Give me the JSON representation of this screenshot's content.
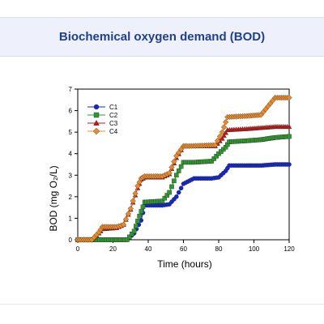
{
  "page": {
    "title": "Biochemical oxygen demand (BOD)"
  },
  "chart_data": {
    "type": "line",
    "title": "",
    "xlabel": "Time (hours)",
    "ylabel": "BOD (mg O₂/L)",
    "xlim": [
      0,
      120
    ],
    "ylim": [
      0,
      7
    ],
    "xticks": [
      0,
      20,
      40,
      60,
      80,
      100,
      120
    ],
    "yticks": [
      0,
      1,
      2,
      3,
      4,
      5,
      6,
      7
    ],
    "grid": false,
    "legend": "top-left",
    "series": [
      {
        "name": "C1",
        "color": "#1426c8",
        "marker": "circle",
        "x": [
          0,
          10,
          20,
          28,
          32,
          36,
          38,
          48,
          52,
          56,
          60,
          66,
          76,
          80,
          84,
          86,
          96,
          104,
          112,
          120
        ],
        "y": [
          0,
          0,
          0,
          0,
          0.3,
          0.9,
          1.6,
          1.6,
          1.65,
          2.0,
          2.6,
          2.85,
          2.85,
          2.9,
          3.2,
          3.45,
          3.45,
          3.45,
          3.5,
          3.5
        ]
      },
      {
        "name": "C2",
        "color": "#2e9a2e",
        "marker": "square",
        "x": [
          0,
          10,
          20,
          28,
          32,
          35,
          38,
          48,
          52,
          56,
          60,
          66,
          76,
          80,
          84,
          86,
          96,
          104,
          112,
          120
        ],
        "y": [
          0,
          0,
          0,
          0,
          0.4,
          1.1,
          1.75,
          1.8,
          2.2,
          3.0,
          3.6,
          3.6,
          3.65,
          4.0,
          4.3,
          4.55,
          4.6,
          4.65,
          4.75,
          4.8
        ]
      },
      {
        "name": "C3",
        "color": "#c81414",
        "marker": "triangle",
        "x": [
          0,
          8,
          12,
          14,
          22,
          26,
          30,
          34,
          36,
          38,
          48,
          52,
          56,
          60,
          62,
          78,
          82,
          85,
          96,
          104,
          112,
          120
        ],
        "y": [
          0,
          0,
          0.3,
          0.5,
          0.55,
          0.7,
          1.4,
          2.4,
          2.8,
          2.9,
          2.9,
          3.05,
          3.8,
          4.35,
          4.35,
          4.35,
          4.7,
          5.1,
          5.15,
          5.2,
          5.25,
          5.25
        ]
      },
      {
        "name": "C4",
        "color": "#e88a2c",
        "marker": "diamond",
        "x": [
          0,
          8,
          12,
          14,
          22,
          26,
          30,
          34,
          36,
          38,
          48,
          52,
          56,
          60,
          62,
          78,
          82,
          85,
          96,
          104,
          108,
          112,
          120
        ],
        "y": [
          0,
          0,
          0.35,
          0.6,
          0.6,
          0.7,
          1.45,
          2.5,
          2.85,
          2.95,
          2.95,
          3.1,
          3.9,
          4.35,
          4.35,
          4.4,
          5.0,
          5.7,
          5.75,
          5.8,
          6.2,
          6.6,
          6.6
        ]
      }
    ]
  }
}
